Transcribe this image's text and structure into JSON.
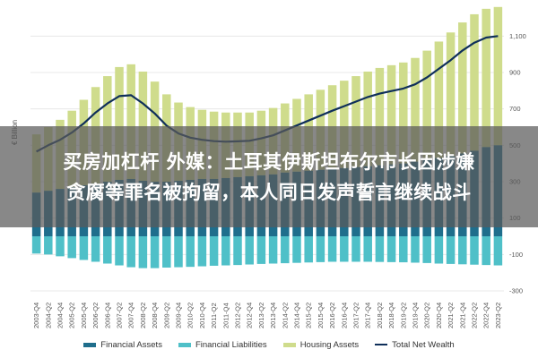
{
  "banner": {
    "line1": "买房加杠杆 外媒：土耳其伊斯坦布尔市长因涉嫌",
    "line2": "贪腐等罪名被拘留，本人同日发声誓言继续战斗"
  },
  "colors": {
    "financial_assets": "#1f6e8c",
    "financial_liabilities": "#4fc0c8",
    "housing_assets": "#cfdc8c",
    "net_wealth": "#0f2f5a"
  },
  "chart_data": {
    "type": "bar",
    "ylabel": "€ Billion",
    "ylim": [
      -300,
      1200
    ],
    "yticks": [
      -300,
      -100,
      100,
      300,
      500,
      700,
      900,
      1100
    ],
    "ytick_labels": [
      "-300",
      "-100",
      "100",
      "300",
      "500",
      "700",
      "900",
      "1,100"
    ],
    "grid": true,
    "legend_position": "bottom",
    "categories": [
      "2003-Q4",
      "2004-Q2",
      "2004-Q4",
      "2005-Q2",
      "2005-Q4",
      "2006-Q2",
      "2006-Q4",
      "2007-Q2",
      "2007-Q4",
      "2008-Q2",
      "2008-Q4",
      "2009-Q2",
      "2009-Q4",
      "2010-Q2",
      "2010-Q4",
      "2011-Q2",
      "2011-Q4",
      "2012-Q2",
      "2012-Q4",
      "2013-Q2",
      "2013-Q4",
      "2014-Q2",
      "2014-Q4",
      "2015-Q2",
      "2015-Q4",
      "2016-Q2",
      "2016-Q4",
      "2017-Q2",
      "2017-Q4",
      "2018-Q2",
      "2018-Q4",
      "2019-Q2",
      "2019-Q4",
      "2020-Q2",
      "2020-Q4",
      "2021-Q2",
      "2021-Q4",
      "2022-Q2",
      "2022-Q4",
      "2023-Q2"
    ],
    "series": [
      {
        "name": "Financial Assets",
        "type": "bar",
        "values": [
          240,
          250,
          260,
          270,
          280,
          290,
          300,
          310,
          315,
          305,
          300,
          300,
          305,
          310,
          315,
          315,
          320,
          325,
          330,
          335,
          340,
          350,
          355,
          360,
          365,
          370,
          375,
          380,
          385,
          390,
          395,
          400,
          410,
          420,
          430,
          440,
          455,
          470,
          490,
          500
        ]
      },
      {
        "name": "Financial Liabilities",
        "type": "bar",
        "values": [
          -95,
          -100,
          -110,
          -120,
          -130,
          -140,
          -150,
          -160,
          -170,
          -175,
          -175,
          -172,
          -170,
          -168,
          -165,
          -162,
          -160,
          -158,
          -155,
          -152,
          -150,
          -148,
          -146,
          -144,
          -142,
          -140,
          -140,
          -140,
          -140,
          -141,
          -142,
          -143,
          -145,
          -147,
          -150,
          -152,
          -154,
          -156,
          -158,
          -160
        ]
      },
      {
        "name": "Housing Assets",
        "type": "bar",
        "values": [
          320,
          350,
          380,
          420,
          470,
          530,
          580,
          620,
          630,
          600,
          550,
          480,
          430,
          400,
          380,
          370,
          360,
          355,
          350,
          355,
          365,
          380,
          400,
          420,
          440,
          460,
          480,
          500,
          520,
          535,
          545,
          555,
          570,
          600,
          640,
          680,
          720,
          750,
          760,
          760
        ]
      },
      {
        "name": "Total Net Wealth",
        "type": "line",
        "values": [
          465,
          500,
          530,
          570,
          620,
          680,
          730,
          770,
          775,
          730,
          675,
          608,
          565,
          542,
          530,
          523,
          520,
          522,
          525,
          538,
          555,
          582,
          609,
          636,
          663,
          690,
          715,
          740,
          765,
          784,
          798,
          812,
          835,
          873,
          920,
          968,
          1021,
          1064,
          1092,
          1100
        ]
      }
    ]
  }
}
